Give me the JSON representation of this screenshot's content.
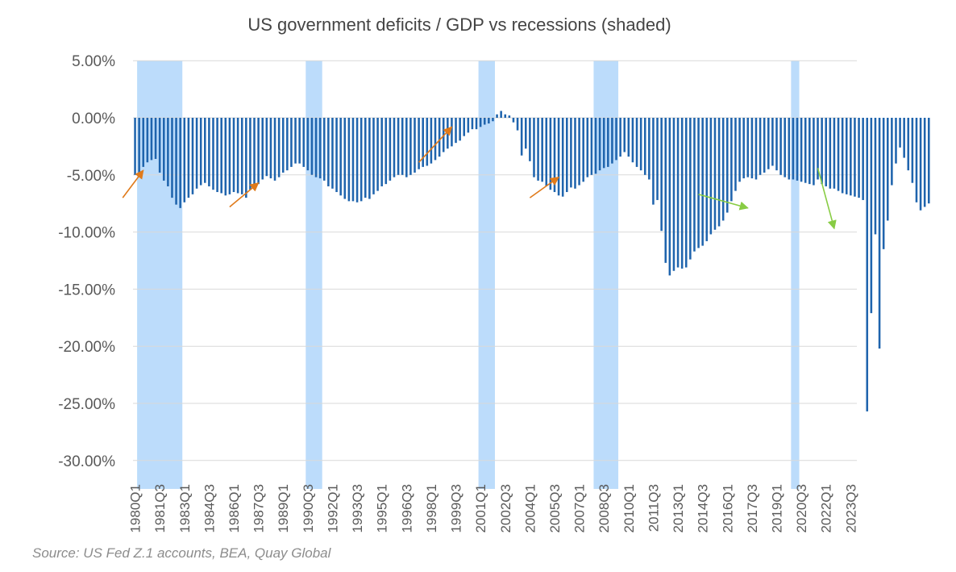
{
  "chart_data": {
    "type": "bar",
    "title": "US government deficits / GDP vs recessions (shaded)",
    "source": "Source: US Fed Z.1 accounts, BEA, Quay Global",
    "ylim": [
      -31.5,
      5.0
    ],
    "y_ticks": [
      5,
      0,
      -5,
      -10,
      -15,
      -20,
      -25,
      -30
    ],
    "y_tick_labels": [
      "5.00%",
      "0.00%",
      "-5.00%",
      "-10.00%",
      "-15.00%",
      "-20.00%",
      "-25.00%",
      "-30.00%"
    ],
    "x_tick_labels": [
      "1980Q1",
      "1981Q3",
      "1983Q1",
      "1984Q3",
      "1986Q1",
      "1987Q3",
      "1989Q1",
      "1990Q3",
      "1992Q1",
      "1993Q3",
      "1995Q1",
      "1996Q3",
      "1998Q1",
      "1999Q3",
      "2001Q1",
      "2002Q3",
      "2004Q1",
      "2005Q3",
      "2007Q1",
      "2008Q3",
      "2010Q1",
      "2011Q3",
      "2013Q1",
      "2014Q3",
      "2016Q1",
      "2017Q3",
      "2019Q1",
      "2020Q3",
      "2022Q1",
      "2023Q3"
    ],
    "start_quarter": "1980Q1",
    "end_quarter": "2023Q4",
    "grid": true,
    "legend": "none",
    "colors": {
      "bar": "#1f64ad",
      "recession": "#bcdcfb",
      "grid": "#d9d9d9",
      "arrow_orange": "#e07a1a",
      "arrow_green": "#88cc44"
    },
    "recessions": [
      {
        "start": "1980Q2",
        "end": "1982Q4"
      },
      {
        "start": "1990Q3",
        "end": "1991Q2"
      },
      {
        "start": "2001Q1",
        "end": "2001Q4"
      },
      {
        "start": "2008Q1",
        "end": "2009Q2"
      },
      {
        "start": "2020Q1",
        "end": "2020Q2"
      }
    ],
    "annotations": [
      {
        "type": "arrow",
        "color": "orange",
        "from": [
          "1979Q2",
          -7.0
        ],
        "to": [
          "1980Q3",
          -4.6
        ]
      },
      {
        "type": "arrow",
        "color": "orange",
        "from": [
          "1985Q4",
          -7.8
        ],
        "to": [
          "1987Q3",
          -5.7
        ]
      },
      {
        "type": "arrow",
        "color": "orange",
        "from": [
          "1997Q2",
          -3.9
        ],
        "to": [
          "1999Q2",
          -0.8
        ]
      },
      {
        "type": "arrow",
        "color": "orange",
        "from": [
          "2004Q1",
          -7.0
        ],
        "to": [
          "2005Q4",
          -5.2
        ]
      },
      {
        "type": "arrow",
        "color": "green",
        "from": [
          "2014Q2",
          -6.7
        ],
        "to": [
          "2017Q2",
          -7.9
        ]
      },
      {
        "type": "arrow",
        "color": "green",
        "from": [
          "2021Q3",
          -4.4
        ],
        "to": [
          "2022Q3",
          -9.7
        ]
      }
    ],
    "values": [
      -5.0,
      -4.8,
      -4.3,
      -3.9,
      -3.7,
      -3.6,
      -4.8,
      -5.5,
      -6.0,
      -7.0,
      -7.6,
      -7.9,
      -7.4,
      -7.0,
      -6.7,
      -6.2,
      -5.9,
      -5.7,
      -6.0,
      -6.3,
      -6.5,
      -6.6,
      -6.8,
      -6.7,
      -6.5,
      -6.6,
      -6.7,
      -7.0,
      -6.3,
      -6.0,
      -5.8,
      -5.4,
      -5.1,
      -5.3,
      -5.5,
      -5.2,
      -4.8,
      -4.6,
      -4.3,
      -4.0,
      -4.0,
      -4.3,
      -4.6,
      -5.0,
      -5.2,
      -5.3,
      -5.5,
      -6.0,
      -6.2,
      -6.5,
      -6.8,
      -7.1,
      -7.3,
      -7.3,
      -7.4,
      -7.3,
      -7.0,
      -7.1,
      -6.7,
      -6.4,
      -6.0,
      -5.8,
      -5.5,
      -5.2,
      -5.0,
      -5.0,
      -5.2,
      -5.0,
      -4.8,
      -4.5,
      -4.3,
      -4.2,
      -4.0,
      -3.7,
      -3.4,
      -3.0,
      -2.7,
      -2.5,
      -2.2,
      -2.0,
      -1.6,
      -1.3,
      -1.0,
      -1.0,
      -0.8,
      -0.6,
      -0.5,
      -0.3,
      0.3,
      0.6,
      0.3,
      0.2,
      -0.4,
      -1.1,
      -3.3,
      -2.7,
      -3.8,
      -5.2,
      -5.5,
      -5.6,
      -6.0,
      -6.3,
      -6.5,
      -6.8,
      -6.9,
      -6.5,
      -6.1,
      -6.2,
      -5.9,
      -5.6,
      -5.2,
      -5.0,
      -4.9,
      -4.6,
      -4.4,
      -4.3,
      -4.0,
      -3.7,
      -3.4,
      -3.0,
      -3.4,
      -3.9,
      -4.3,
      -4.6,
      -5.0,
      -5.4,
      -7.6,
      -7.2,
      -9.9,
      -12.7,
      -13.8,
      -13.4,
      -13.1,
      -13.2,
      -13.1,
      -12.4,
      -11.7,
      -11.4,
      -11.2,
      -10.8,
      -10.2,
      -9.8,
      -9.5,
      -9.0,
      -8.3,
      -7.3,
      -6.4,
      -5.6,
      -5.3,
      -5.2,
      -5.3,
      -5.4,
      -5.0,
      -4.8,
      -4.5,
      -4.2,
      -4.6,
      -5.0,
      -5.2,
      -5.4,
      -5.4,
      -5.5,
      -5.6,
      -5.7,
      -5.8,
      -5.9,
      -5.4,
      -5.8,
      -6.0,
      -6.2,
      -6.2,
      -6.4,
      -6.6,
      -6.7,
      -6.8,
      -6.9,
      -7.0,
      -7.2,
      -25.7,
      -17.1,
      -10.2,
      -20.2,
      -11.5,
      -9.0,
      -5.9,
      -4.0,
      -2.6,
      -3.5,
      -4.6,
      -5.7,
      -7.4,
      -8.1,
      -7.8,
      -7.5
    ]
  }
}
